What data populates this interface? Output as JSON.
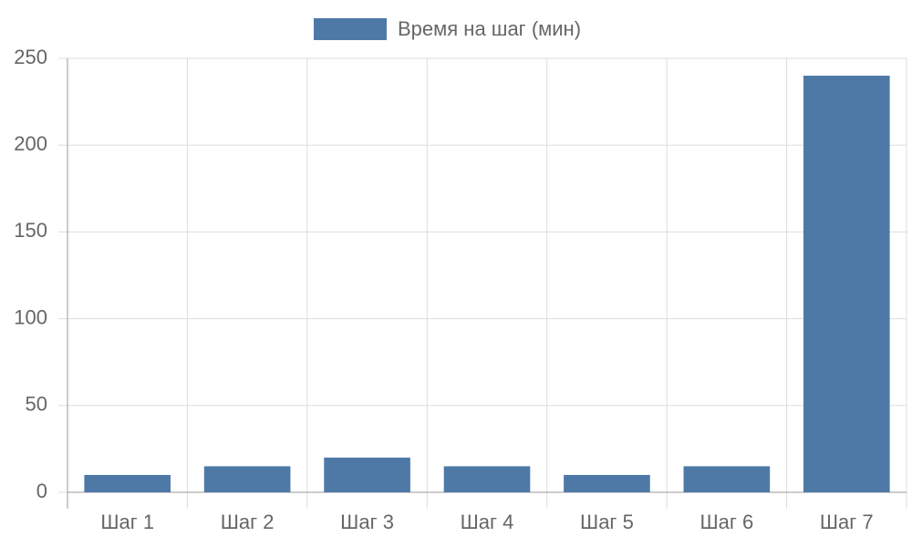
{
  "chart_data": {
    "type": "bar",
    "categories": [
      "Шаг 1",
      "Шаг 2",
      "Шаг 3",
      "Шаг 4",
      "Шаг 5",
      "Шаг 6",
      "Шаг 7"
    ],
    "series": [
      {
        "name": "Время на шаг (мин)",
        "color": "#4e79a7",
        "values": [
          10,
          15,
          20,
          15,
          10,
          15,
          240
        ]
      }
    ],
    "ylim": [
      0,
      250
    ],
    "yticks": [
      0,
      50,
      100,
      150,
      200,
      250
    ],
    "grid": true,
    "legend": "top"
  }
}
